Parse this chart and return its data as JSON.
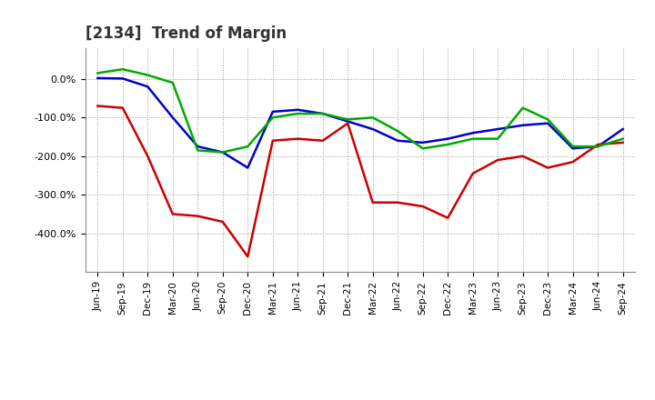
{
  "title": "[2134]  Trend of Margin",
  "x_labels": [
    "Jun-19",
    "Sep-19",
    "Dec-19",
    "Mar-20",
    "Jun-20",
    "Sep-20",
    "Dec-20",
    "Mar-21",
    "Jun-21",
    "Sep-21",
    "Dec-21",
    "Mar-22",
    "Jun-22",
    "Sep-22",
    "Dec-22",
    "Mar-23",
    "Jun-23",
    "Sep-23",
    "Dec-23",
    "Mar-24",
    "Jun-24",
    "Sep-24"
  ],
  "ordinary_income": [
    2,
    1,
    -20,
    -100,
    -175,
    -190,
    -230,
    -85,
    -80,
    -90,
    -110,
    -130,
    -160,
    -165,
    -155,
    -140,
    -130,
    -120,
    -115,
    -180,
    -175,
    -130
  ],
  "net_income": [
    -70,
    -75,
    -200,
    -350,
    -355,
    -370,
    -460,
    -160,
    -155,
    -160,
    -115,
    -320,
    -320,
    -330,
    -360,
    -245,
    -210,
    -200,
    -230,
    -215,
    -170,
    -165
  ],
  "operating_cashflow": [
    15,
    25,
    10,
    -10,
    -185,
    -190,
    -175,
    -100,
    -90,
    -90,
    -105,
    -100,
    -135,
    -180,
    -170,
    -155,
    -155,
    -75,
    -105,
    -175,
    -175,
    -155
  ],
  "ylim": [
    -500,
    80
  ],
  "yticks": [
    0,
    -100,
    -200,
    -300,
    -400
  ],
  "line_colors": {
    "ordinary_income": "#0000cc",
    "net_income": "#cc0000",
    "operating_cashflow": "#00aa00"
  },
  "line_width": 1.8,
  "background_color": "#ffffff",
  "grid_color": "#999999"
}
